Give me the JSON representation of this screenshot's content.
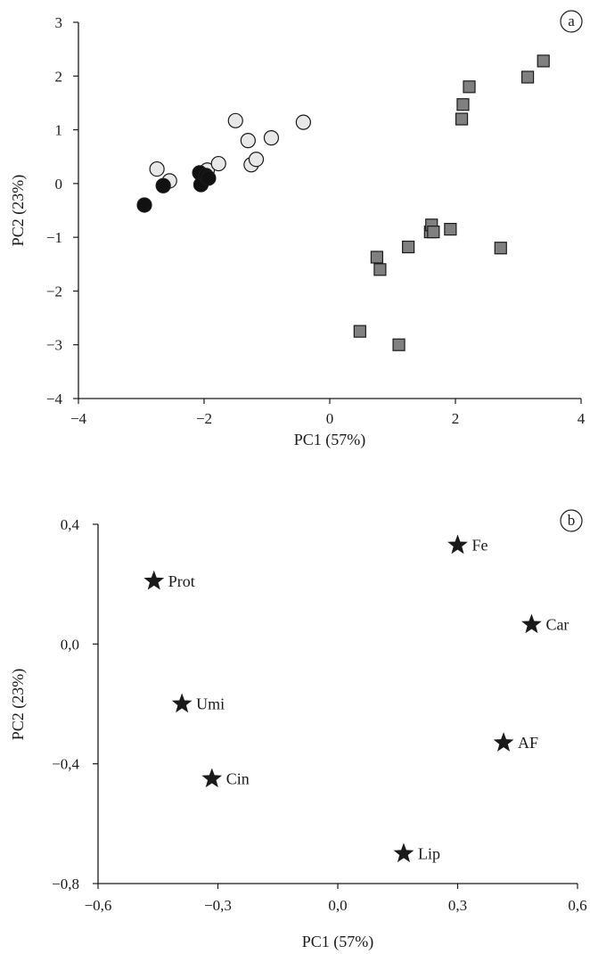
{
  "chart_data": [
    {
      "type": "scatter",
      "panel_label": "a",
      "xlabel": "PC1 (57%)",
      "ylabel": "PC2 (23%)",
      "xlim": [
        -4,
        4
      ],
      "ylim": [
        -4,
        3
      ],
      "xticks": [
        -4,
        -2,
        0,
        2,
        4
      ],
      "yticks": [
        -4,
        -3,
        -2,
        -1,
        0,
        1,
        2,
        3
      ],
      "xtick_labels": [
        "−4",
        "−2",
        "0",
        "2",
        "4"
      ],
      "ytick_labels": [
        "−4",
        "−3",
        "−2",
        "−1",
        "0",
        "1",
        "2",
        "3"
      ],
      "series": [
        {
          "marker": "circle-light",
          "fill": "#e8e8e8",
          "points": [
            [
              -2.75,
              0.27
            ],
            [
              -2.55,
              0.05
            ],
            [
              -1.95,
              0.25
            ],
            [
              -1.77,
              0.37
            ],
            [
              -1.5,
              1.17
            ],
            [
              -1.3,
              0.8
            ],
            [
              -1.25,
              0.35
            ],
            [
              -1.17,
              0.45
            ],
            [
              -0.93,
              0.85
            ],
            [
              -0.42,
              1.14
            ]
          ]
        },
        {
          "marker": "circle-dark",
          "fill": "#111111",
          "points": [
            [
              -2.95,
              -0.4
            ],
            [
              -2.65,
              -0.04
            ],
            [
              -2.07,
              0.2
            ],
            [
              -2.05,
              -0.02
            ],
            [
              -1.97,
              0.15
            ],
            [
              -1.93,
              0.1
            ]
          ]
        },
        {
          "marker": "square",
          "fill": "#808080",
          "points": [
            [
              0.48,
              -2.75
            ],
            [
              0.75,
              -1.37
            ],
            [
              0.8,
              -1.6
            ],
            [
              1.1,
              -3.0
            ],
            [
              1.25,
              -1.18
            ],
            [
              1.6,
              -0.9
            ],
            [
              1.62,
              -0.77
            ],
            [
              1.65,
              -0.9
            ],
            [
              1.92,
              -0.85
            ],
            [
              2.1,
              1.2
            ],
            [
              2.12,
              1.47
            ],
            [
              2.22,
              1.8
            ],
            [
              2.72,
              -1.2
            ],
            [
              3.15,
              1.98
            ],
            [
              3.4,
              2.28
            ]
          ]
        }
      ]
    },
    {
      "type": "scatter",
      "panel_label": "b",
      "xlabel": "PC1 (57%)",
      "ylabel": "PC2 (23%)",
      "xlim": [
        -0.6,
        0.6
      ],
      "ylim": [
        -0.8,
        0.4
      ],
      "xticks": [
        -0.6,
        -0.3,
        0.0,
        0.3,
        0.6
      ],
      "yticks": [
        -0.8,
        -0.4,
        0.0,
        0.4
      ],
      "xtick_labels": [
        "−0,6",
        "−0,3",
        "0,0",
        "0,3",
        "0,6"
      ],
      "ytick_labels": [
        "−0,8",
        "−0,4",
        "0,0",
        "0,4"
      ],
      "points": [
        {
          "label": "Prot",
          "x": -0.46,
          "y": 0.21
        },
        {
          "label": "Fe",
          "x": 0.3,
          "y": 0.33
        },
        {
          "label": "Car",
          "x": 0.485,
          "y": 0.065
        },
        {
          "label": "Umi",
          "x": -0.39,
          "y": -0.2
        },
        {
          "label": "AF",
          "x": 0.415,
          "y": -0.33
        },
        {
          "label": "Cin",
          "x": -0.315,
          "y": -0.45
        },
        {
          "label": "Lip",
          "x": 0.165,
          "y": -0.7
        }
      ]
    }
  ]
}
